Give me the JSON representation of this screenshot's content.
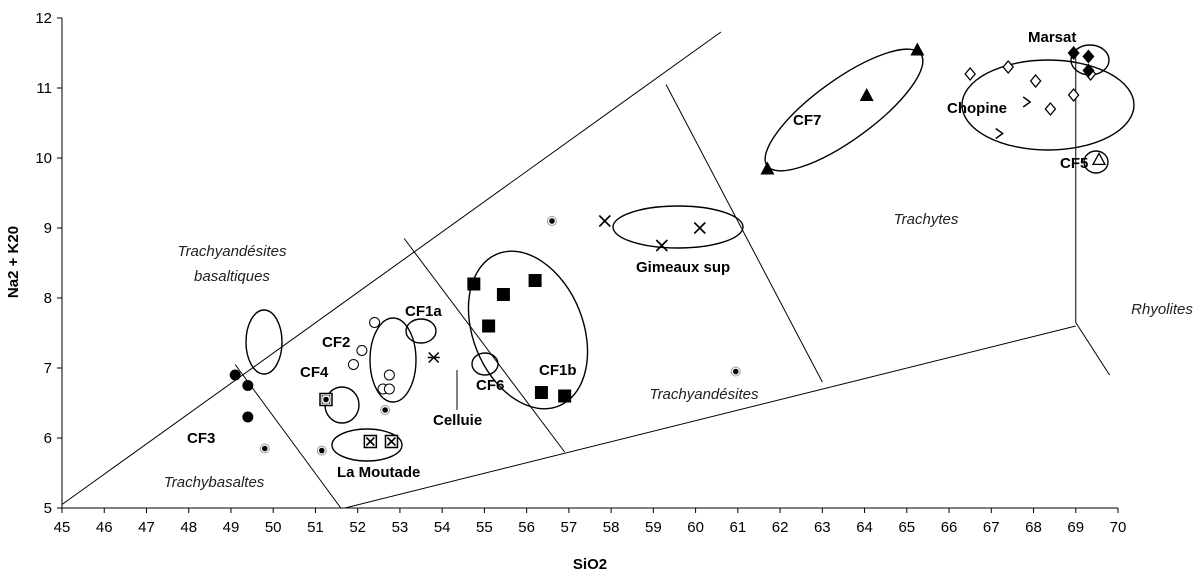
{
  "chart_data": {
    "type": "scatter",
    "xlabel": "SiO2",
    "ylabel": "Na2 + K20",
    "xlim": [
      45,
      70
    ],
    "ylim": [
      5,
      12
    ],
    "xticks": [
      "45",
      "46",
      "47",
      "48",
      "49",
      "50",
      "51",
      "52",
      "53",
      "54",
      "55",
      "56",
      "57",
      "58",
      "59",
      "60",
      "61",
      "62",
      "63",
      "64",
      "65",
      "66",
      "67",
      "68",
      "69",
      "70"
    ],
    "yticks": [
      "5",
      "6",
      "7",
      "8",
      "9",
      "10",
      "11",
      "12"
    ],
    "grid": false,
    "field_labels": [
      "Trachyandésites basaltiques",
      "Trachyandésites",
      "Trachytes",
      "Rhyolites",
      "Trachybasaltes"
    ],
    "group_labels": [
      "CF1a",
      "CF2",
      "CF4",
      "CF3",
      "CF6",
      "Celluie",
      "CF1b",
      "La Moutade",
      "Gimeaux sup",
      "CF7",
      "Chopine",
      "Marsat",
      "CF5"
    ],
    "boundaries": [
      {
        "name": "lower-left diagonal",
        "points": [
          [
            45,
            5.05
          ],
          [
            60.6,
            11.8
          ]
        ]
      },
      {
        "name": "bottom diagonal",
        "points": [
          [
            51.7,
            5.0
          ],
          [
            69.0,
            7.6
          ]
        ]
      },
      {
        "name": "trachybasalt divide",
        "points": [
          [
            49.1,
            7.05
          ],
          [
            51.6,
            5.0
          ]
        ]
      },
      {
        "name": "basaltic trachyandesite divide",
        "points": [
          [
            53.1,
            8.85
          ],
          [
            56.9,
            5.8
          ]
        ]
      },
      {
        "name": "trachyandesite divide",
        "points": [
          [
            59.3,
            11.05
          ],
          [
            63.0,
            6.8
          ]
        ]
      },
      {
        "name": "rhyolite vertical",
        "points": [
          [
            69.0,
            7.65
          ],
          [
            69.0,
            11.5
          ]
        ]
      },
      {
        "name": "rhyolite tail",
        "points": [
          [
            69.0,
            7.65
          ],
          [
            69.8,
            6.9
          ]
        ]
      }
    ],
    "series": [
      {
        "name": "CF3",
        "marker": "filled-circle",
        "points": [
          [
            49.1,
            6.9
          ],
          [
            49.4,
            6.75
          ],
          [
            49.4,
            6.3
          ]
        ]
      },
      {
        "name": "CF2",
        "marker": "open-circle",
        "points": [
          [
            52.4,
            7.65
          ],
          [
            51.9,
            7.05
          ],
          [
            52.6,
            6.7
          ],
          [
            52.75,
            6.7
          ],
          [
            52.75,
            6.9
          ],
          [
            52.1,
            7.25
          ]
        ]
      },
      {
        "name": "CF4",
        "marker": "boxed-x",
        "points": [
          [
            51.25,
            6.55
          ]
        ]
      },
      {
        "name": "La Moutade",
        "marker": "boxed-x",
        "points": [
          [
            52.3,
            5.95
          ],
          [
            52.8,
            5.95
          ]
        ]
      },
      {
        "name": "Celluie",
        "marker": "asterisk",
        "points": [
          [
            53.8,
            7.15
          ]
        ]
      },
      {
        "name": "CF1b",
        "marker": "filled-square",
        "points": [
          [
            54.75,
            8.2
          ],
          [
            55.45,
            8.05
          ],
          [
            56.2,
            8.25
          ],
          [
            55.1,
            7.6
          ],
          [
            56.35,
            6.65
          ],
          [
            56.9,
            6.6
          ]
        ]
      },
      {
        "name": "Gimeaux sup",
        "marker": "x",
        "points": [
          [
            57.85,
            9.1
          ],
          [
            59.2,
            8.75
          ],
          [
            60.1,
            9.0
          ]
        ]
      },
      {
        "name": "CF7",
        "marker": "filled-triangle",
        "points": [
          [
            61.7,
            9.85
          ],
          [
            64.05,
            10.9
          ],
          [
            65.25,
            11.55
          ]
        ]
      },
      {
        "name": "Chopine",
        "marker": "open-diamond",
        "points": [
          [
            66.5,
            11.2
          ],
          [
            67.4,
            11.3
          ],
          [
            68.05,
            11.1
          ],
          [
            68.4,
            10.7
          ],
          [
            68.95,
            10.9
          ],
          [
            69.35,
            11.2
          ]
        ]
      },
      {
        "name": "Chopine (chevrons)",
        "marker": "chevron",
        "points": [
          [
            67.85,
            10.8
          ],
          [
            67.2,
            10.35
          ]
        ]
      },
      {
        "name": "Marsat",
        "marker": "filled-diamond",
        "points": [
          [
            68.95,
            11.5
          ],
          [
            69.3,
            11.45
          ],
          [
            69.3,
            11.25
          ]
        ]
      },
      {
        "name": "CF5",
        "marker": "open-triangle",
        "points": [
          [
            69.55,
            9.98
          ]
        ]
      },
      {
        "name": "isolated",
        "marker": "dot",
        "points": [
          [
            49.8,
            5.85
          ],
          [
            51.15,
            5.82
          ],
          [
            52.65,
            6.4
          ],
          [
            51.25,
            6.55
          ],
          [
            56.6,
            9.1
          ],
          [
            60.95,
            6.95
          ]
        ]
      }
    ]
  }
}
